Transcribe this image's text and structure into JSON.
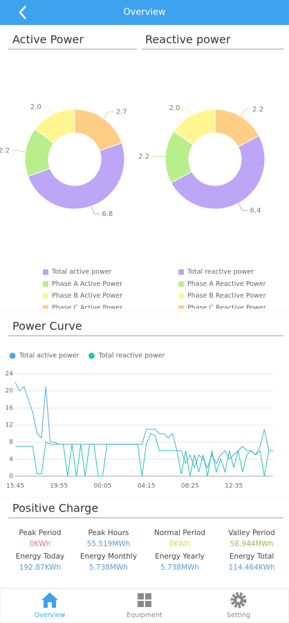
{
  "header": {
    "title": "Overview"
  },
  "chart_data": [
    {
      "type": "pie",
      "title": "Active Power",
      "categories": [
        "Total active power",
        "Phase A Active Power",
        "Phase B Active Power",
        "Phase C Active Power"
      ],
      "values": [
        6.8,
        2.2,
        2,
        2.7
      ],
      "value_labels": [
        "6.8",
        "2.2",
        "2.0",
        "2.7"
      ],
      "colors": [
        "#bca6f5",
        "#b8ef8c",
        "#fff690",
        "#ffcd85"
      ]
    },
    {
      "type": "pie",
      "title": "Reactive power",
      "categories": [
        "Total reactive power",
        "Phase A Reactive Power",
        "Phase B Reactive Power",
        "Phase C Reactive Power"
      ],
      "values": [
        6.4,
        2.2,
        2,
        2.2
      ],
      "value_labels": [
        "6.4",
        "2.2",
        "2.0",
        "2.2"
      ],
      "colors": [
        "#bca6f5",
        "#b8ef8c",
        "#fff690",
        "#ffcd85"
      ]
    },
    {
      "type": "line",
      "title": "Power Curve",
      "categories": [
        "15:45",
        null,
        null,
        null,
        null,
        null,
        null,
        null,
        null,
        null,
        "19:55",
        null,
        null,
        null,
        null,
        null,
        null,
        null,
        null,
        null,
        "00:05",
        null,
        null,
        null,
        null,
        null,
        null,
        null,
        null,
        null,
        "04:15",
        null,
        null,
        null,
        null,
        null,
        null,
        null,
        null,
        null,
        "08:25",
        null,
        null,
        null,
        null,
        null,
        null,
        null,
        null,
        null,
        "12:35",
        null,
        null,
        null,
        null,
        null,
        null,
        null,
        null,
        null
      ],
      "series": [
        {
          "name": "Total active power",
          "color": "#4ea6e6",
          "values": [
            22,
            20,
            21,
            18,
            15,
            10,
            9,
            21,
            8,
            8,
            7.5,
            7.5,
            7.5,
            7.5,
            7.5,
            7.5,
            7.5,
            7.5,
            7.5,
            7.5,
            7.5,
            7.5,
            7.5,
            7.5,
            7.5,
            7.5,
            7.5,
            7.5,
            7.5,
            7.5,
            11,
            11,
            11,
            10,
            10,
            9,
            10,
            6,
            6,
            3,
            5,
            2,
            5,
            4,
            2,
            5,
            3,
            5,
            6,
            4,
            5,
            6,
            7,
            6,
            6,
            5,
            7,
            11,
            6,
            6
          ]
        },
        {
          "name": "Total reactive power",
          "color": "#22c4a8",
          "values": [
            7,
            7,
            7,
            7,
            7,
            0.5,
            0.5,
            8,
            7.5,
            7.5,
            7.5,
            7.5,
            0,
            7.5,
            0,
            7.5,
            0,
            7.5,
            7.5,
            0,
            0,
            7.5,
            7.5,
            7.5,
            7.5,
            7.5,
            7.5,
            7.5,
            7.5,
            0,
            7.5,
            10,
            9.5,
            6,
            6,
            6,
            6,
            6,
            0.5,
            6,
            0,
            5,
            1,
            5,
            0,
            6,
            1,
            4,
            1,
            6,
            2,
            6,
            1,
            5,
            6,
            5,
            6,
            0,
            6,
            6
          ]
        }
      ],
      "ylim": [
        0,
        24
      ],
      "yticks": [
        0,
        4,
        8,
        12,
        16,
        20,
        24
      ],
      "grid": true
    }
  ],
  "charge": {
    "title": "Positive Charge",
    "items": [
      {
        "label": "Peak Period",
        "value": "0KWh",
        "color": "#e57373"
      },
      {
        "label": "Peak Hours",
        "value": "55.519MWh",
        "color": "#5b9bd5"
      },
      {
        "label": "Normal Period",
        "value": "0KWh",
        "color": "#e6d24a"
      },
      {
        "label": "Valley Period",
        "value": "58.944MWh",
        "color": "#8bc34a"
      },
      {
        "label": "Energy Today",
        "value": "192.87KWh",
        "color": "#5b9bd5"
      },
      {
        "label": "Energy Monthly",
        "value": "5.738MWh",
        "color": "#5b9bd5"
      },
      {
        "label": "Energy Yearly",
        "value": "5.738MWh",
        "color": "#5b9bd5"
      },
      {
        "label": "Energy Total",
        "value": "114.464KWh",
        "color": "#5b9bd5"
      }
    ]
  },
  "nav": [
    "Overview",
    "Equipment",
    "Setting"
  ]
}
